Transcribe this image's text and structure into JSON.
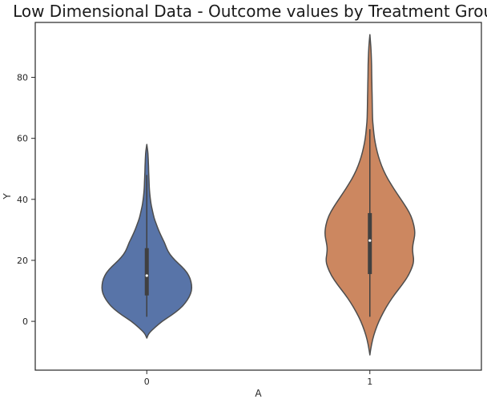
{
  "chart_data": {
    "type": "violin",
    "title": "Low Dimensional Data - Outcome values by Treatment Group",
    "xlabel": "A",
    "ylabel": "Y",
    "categories": [
      "0",
      "1"
    ],
    "ylim": [
      -16,
      98
    ],
    "yticks": [
      0,
      20,
      40,
      60,
      80
    ],
    "ytick_labels": [
      "0",
      "20",
      "40",
      "60",
      "80"
    ],
    "grid": false,
    "colors": [
      "#5874a8",
      "#cc8760"
    ],
    "outline_color": "#4d4d4d",
    "series": [
      {
        "category": "0",
        "min": 1.5,
        "q1": 8.5,
        "median": 15,
        "q3": 24,
        "max": 48,
        "extent": [
          -5.5,
          58
        ],
        "density_profile": [
          [
            -5.5,
            0.0
          ],
          [
            -4,
            0.04
          ],
          [
            -2,
            0.18
          ],
          [
            0,
            0.34
          ],
          [
            2,
            0.55
          ],
          [
            4,
            0.73
          ],
          [
            6,
            0.86
          ],
          [
            8,
            0.95
          ],
          [
            10,
            1.0
          ],
          [
            12,
            1.0
          ],
          [
            14,
            0.97
          ],
          [
            16,
            0.9
          ],
          [
            18,
            0.78
          ],
          [
            20,
            0.63
          ],
          [
            22,
            0.51
          ],
          [
            24,
            0.44
          ],
          [
            26,
            0.39
          ],
          [
            28,
            0.32
          ],
          [
            30,
            0.26
          ],
          [
            32,
            0.21
          ],
          [
            34,
            0.16
          ],
          [
            36,
            0.13
          ],
          [
            38,
            0.1
          ],
          [
            40,
            0.08
          ],
          [
            42,
            0.065
          ],
          [
            44,
            0.055
          ],
          [
            46,
            0.05
          ],
          [
            48,
            0.045
          ],
          [
            50,
            0.04
          ],
          [
            52,
            0.035
          ],
          [
            54,
            0.03
          ],
          [
            56,
            0.02
          ],
          [
            58,
            0.0
          ]
        ]
      },
      {
        "category": "1",
        "min": 1.5,
        "q1": 15.5,
        "median": 26.5,
        "q3": 35.5,
        "max": 63,
        "extent": [
          -11,
          94
        ],
        "density_profile": [
          [
            -11,
            0.0
          ],
          [
            -9,
            0.02
          ],
          [
            -6,
            0.06
          ],
          [
            -3,
            0.12
          ],
          [
            0,
            0.2
          ],
          [
            3,
            0.3
          ],
          [
            6,
            0.42
          ],
          [
            9,
            0.56
          ],
          [
            12,
            0.72
          ],
          [
            15,
            0.86
          ],
          [
            18,
            0.95
          ],
          [
            20,
            0.98
          ],
          [
            22,
            0.96
          ],
          [
            24,
            0.95
          ],
          [
            26,
            0.97
          ],
          [
            28,
            1.0
          ],
          [
            30,
            1.0
          ],
          [
            33,
            0.96
          ],
          [
            36,
            0.87
          ],
          [
            39,
            0.74
          ],
          [
            42,
            0.6
          ],
          [
            45,
            0.47
          ],
          [
            48,
            0.35
          ],
          [
            51,
            0.26
          ],
          [
            54,
            0.19
          ],
          [
            57,
            0.14
          ],
          [
            60,
            0.1
          ],
          [
            63,
            0.08
          ],
          [
            66,
            0.06
          ],
          [
            70,
            0.055
          ],
          [
            74,
            0.05
          ],
          [
            78,
            0.045
          ],
          [
            82,
            0.04
          ],
          [
            86,
            0.035
          ],
          [
            90,
            0.025
          ],
          [
            94,
            0.0
          ]
        ]
      }
    ]
  }
}
